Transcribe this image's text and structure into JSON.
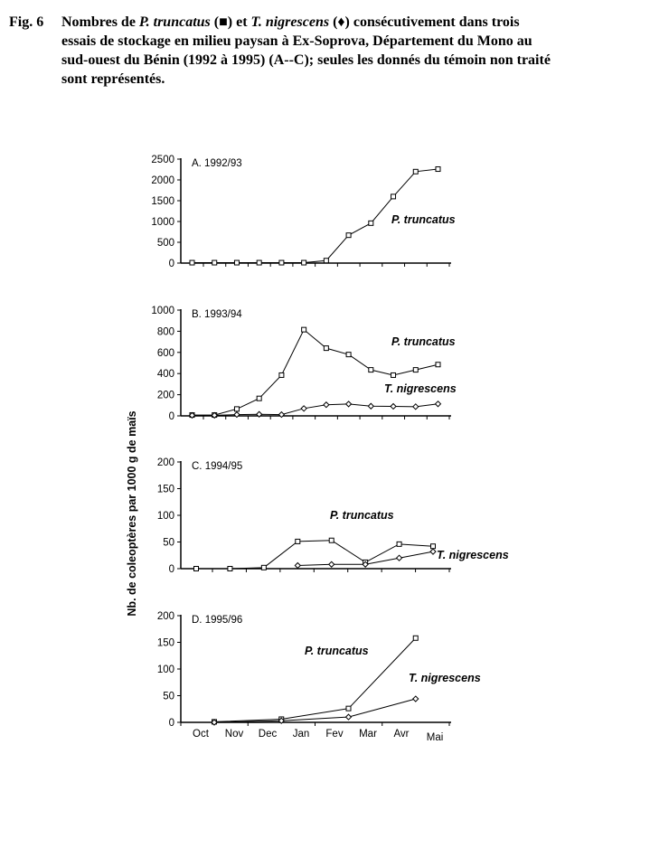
{
  "figure": {
    "label": "Fig. 6",
    "caption_lines": [
      [
        {
          "t": "Nombres de ",
          "i": false
        },
        {
          "t": "P. truncatus",
          "i": true
        },
        {
          "t": " (■) et ",
          "i": false
        },
        {
          "t": "T. nigrescens",
          "i": true
        },
        {
          "t": " (♦) consécutivement dans trois",
          "i": false
        }
      ],
      [
        {
          "t": "essais de stockage en milieu paysan à Ex-Soprova, Département du Mono au",
          "i": false
        }
      ],
      [
        {
          "t": "sud-ouest du Bénin (1992 à 1995) (A--C); seules les donnés du témoin non traité",
          "i": false
        }
      ],
      [
        {
          "t": "sont représentés.",
          "i": false
        }
      ]
    ]
  },
  "y_axis_label": "Nb. de coleoptères par 1000 g de maïs",
  "x_axis_months": [
    "Oct",
    "Nov",
    "Dec",
    "Jan",
    "Fev",
    "Mar",
    "Avr",
    "Mai"
  ],
  "chart_data": [
    {
      "type": "line",
      "panel_label": "A. 1992/93",
      "ylim": [
        0,
        2500
      ],
      "yticks": [
        0,
        500,
        1000,
        1500,
        2000,
        2500
      ],
      "x_sampling": "semi-monthly Oct-Avr",
      "series": [
        {
          "name": "P. truncatus",
          "marker": "square",
          "values": [
            10,
            10,
            10,
            10,
            10,
            10,
            60,
            670,
            960,
            1600,
            2200,
            2260
          ]
        }
      ]
    },
    {
      "type": "line",
      "panel_label": "B. 1993/94",
      "ylim": [
        0,
        1000
      ],
      "yticks": [
        0,
        200,
        400,
        600,
        800,
        1000
      ],
      "x_sampling": "semi-monthly Oct-Avr",
      "series": [
        {
          "name": "P. truncatus",
          "marker": "square",
          "values": [
            8,
            8,
            65,
            165,
            385,
            815,
            640,
            580,
            435,
            385,
            435,
            485
          ]
        },
        {
          "name": "T. nigrescens",
          "marker": "diamond",
          "values": [
            5,
            5,
            12,
            15,
            12,
            70,
            105,
            112,
            92,
            90,
            87,
            113
          ]
        }
      ]
    },
    {
      "type": "line",
      "panel_label": "C. 1994/95",
      "ylim": [
        0,
        200
      ],
      "yticks": [
        0,
        50,
        100,
        150,
        200
      ],
      "x_sampling": "monthly Oct-Mai",
      "series": [
        {
          "name": "P. truncatus",
          "marker": "square",
          "values": [
            0,
            0,
            2,
            51,
            53,
            12,
            46,
            42
          ]
        },
        {
          "name": "T. nigrescens",
          "marker": "diamond",
          "values": [
            null,
            null,
            null,
            6,
            8,
            8,
            20,
            32
          ]
        }
      ]
    },
    {
      "type": "line",
      "panel_label": "D. 1995/96",
      "ylim": [
        0,
        200
      ],
      "yticks": [
        0,
        50,
        100,
        150,
        200
      ],
      "x_sampling": "bimonthly Nov-Avr",
      "series": [
        {
          "name": "P. truncatus",
          "marker": "square",
          "values": [
            1,
            6,
            26,
            158
          ]
        },
        {
          "name": "T. nigrescens",
          "marker": "diamond",
          "values": [
            0,
            3,
            10,
            44
          ]
        }
      ]
    }
  ]
}
